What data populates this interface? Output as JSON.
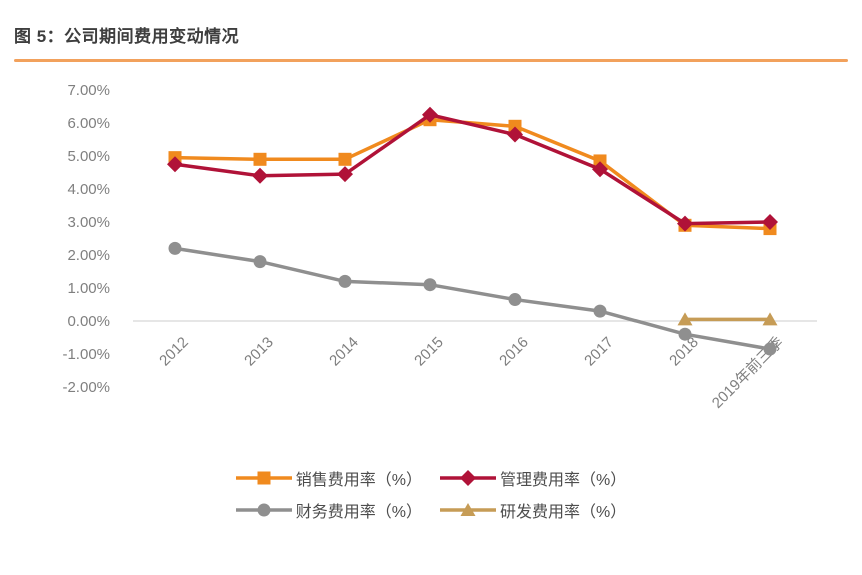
{
  "header": {
    "title": "图 5：公司期间费用变动情况"
  },
  "colors": {
    "title_text": "#3e3e3e",
    "title_rule": "#f2a15c",
    "axis_text": "#7f7f7f",
    "zero_gridline": "#d8d8d8",
    "legend_text": "#4d4d4d"
  },
  "chart_data": {
    "type": "line",
    "title": "公司期间费用变动情况",
    "categories": [
      "2012",
      "2013",
      "2014",
      "2015",
      "2016",
      "2017",
      "2018",
      "2019年前三季"
    ],
    "series": [
      {
        "key": "sales-expense-ratio",
        "name": "销售费用率（%）",
        "color": "#f08a1e",
        "marker": "square",
        "values": [
          4.95,
          4.9,
          4.9,
          6.1,
          5.9,
          4.85,
          2.9,
          2.8
        ]
      },
      {
        "key": "admin-expense-ratio",
        "name": "管理费用率（%）",
        "color": "#b01238",
        "marker": "diamond",
        "values": [
          4.75,
          4.4,
          4.45,
          6.25,
          5.65,
          4.6,
          2.95,
          3.0
        ]
      },
      {
        "key": "finance-expense-ratio",
        "name": "财务费用率（%）",
        "color": "#8f8f8f",
        "marker": "circle",
        "values": [
          2.2,
          1.8,
          1.2,
          1.1,
          0.65,
          0.3,
          -0.4,
          -0.85
        ]
      },
      {
        "key": "rd-expense-ratio",
        "name": "研发费用率（%）",
        "color": "#c69c56",
        "marker": "triangle",
        "values": [
          null,
          null,
          null,
          null,
          null,
          null,
          0.05,
          0.05
        ]
      }
    ],
    "ylim": [
      -2,
      7
    ],
    "ytick_step": 1,
    "ytick_labels": [
      "7.00%",
      "6.00%",
      "5.00%",
      "4.00%",
      "3.00%",
      "2.00%",
      "1.00%",
      "0.00%",
      "-1.00%",
      "-2.00%"
    ],
    "grid": "zero-line-only",
    "legend_position": "bottom",
    "legend_rows": [
      [
        0,
        1
      ],
      [
        2,
        3
      ]
    ],
    "xlabel": "",
    "ylabel": ""
  }
}
